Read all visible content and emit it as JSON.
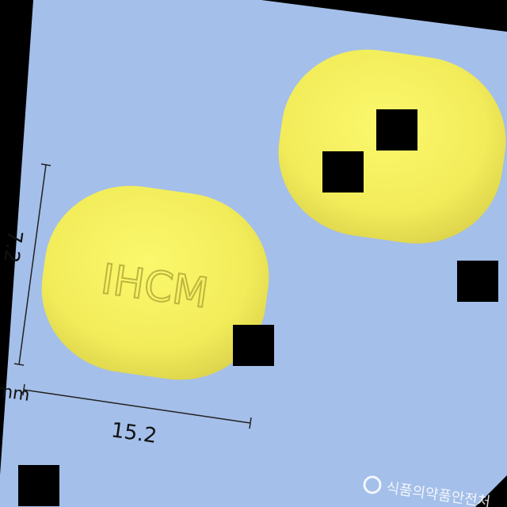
{
  "pill": {
    "imprint": "IHCM",
    "color": "#f3ef5f",
    "shadow_color": "#c9c24a"
  },
  "background_color": "#a4bfe9",
  "dimensions": {
    "height_label": "7.2",
    "width_label": "15.2",
    "unit_label": "mm"
  },
  "watermark": {
    "text": "식품의약품안전처"
  }
}
